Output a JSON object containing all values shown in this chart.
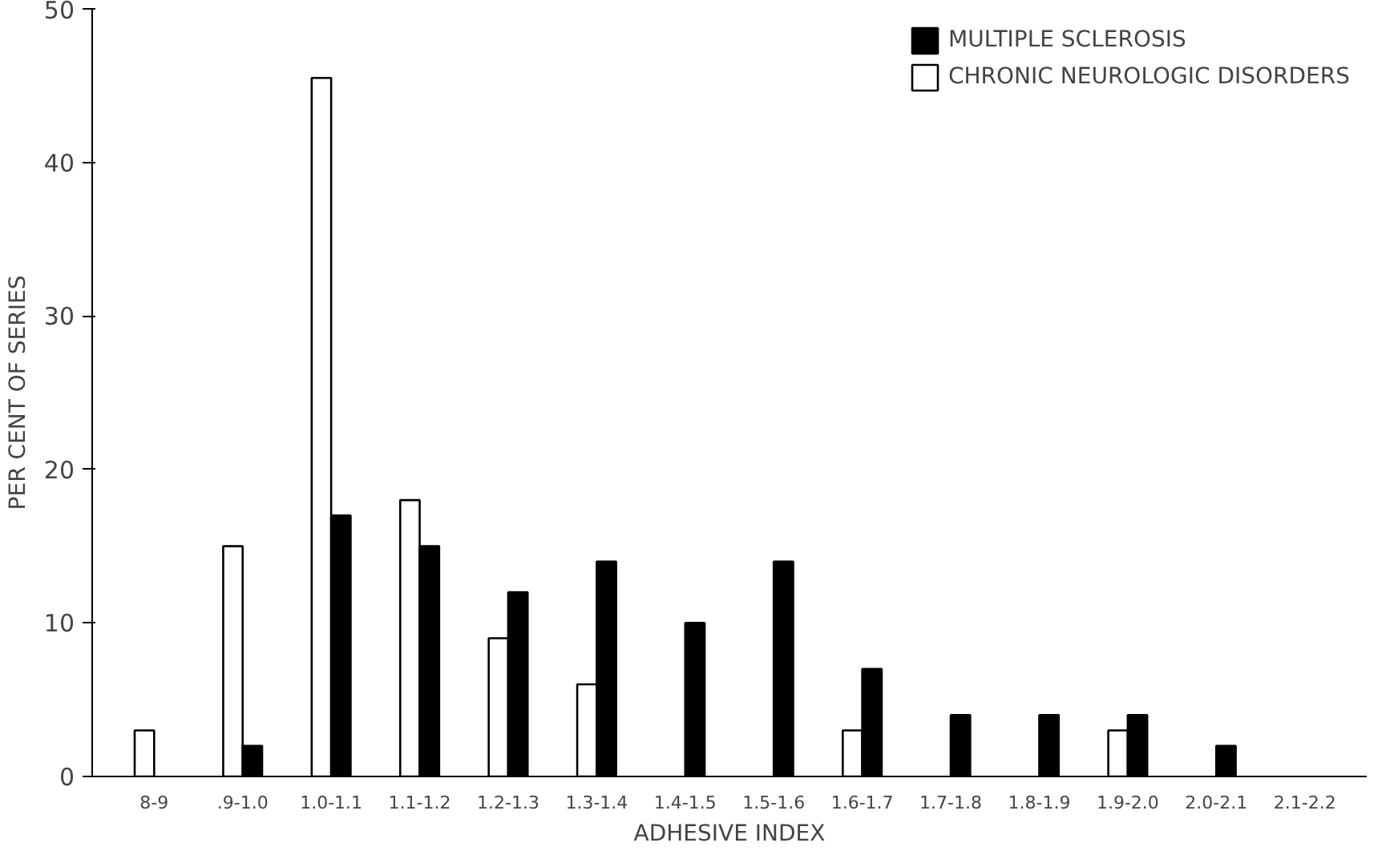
{
  "chart_data": {
    "type": "bar",
    "xlabel": "ADHESIVE INDEX",
    "ylabel": "PER CENT OF SERIES",
    "categories": [
      "8-9",
      ".9-1.0",
      "1.0-1.1",
      "1.1-1.2",
      "1.2-1.3",
      "1.3-1.4",
      "1.4-1.5",
      "1.5-1.6",
      "1.6-1.7",
      "1.7-1.8",
      "1.8-1.9",
      "1.9-2.0",
      "2.0-2.1",
      "2.1-2.2"
    ],
    "series": [
      {
        "name": "CHRONIC NEUROLOGIC DISORDERS",
        "color": "#ffffff",
        "values": [
          3,
          15,
          45.5,
          18,
          9,
          6,
          null,
          null,
          3,
          null,
          null,
          3,
          null,
          null
        ]
      },
      {
        "name": "MULTIPLE SCLEROSIS",
        "color": "#000000",
        "values": [
          null,
          2,
          17,
          15,
          12,
          14,
          10,
          14,
          7,
          4,
          4,
          4,
          2,
          null
        ]
      }
    ],
    "ylim": [
      0,
      50
    ],
    "yticks": [
      0,
      10,
      20,
      30,
      40,
      50
    ],
    "grid": false,
    "legend": "top right"
  }
}
